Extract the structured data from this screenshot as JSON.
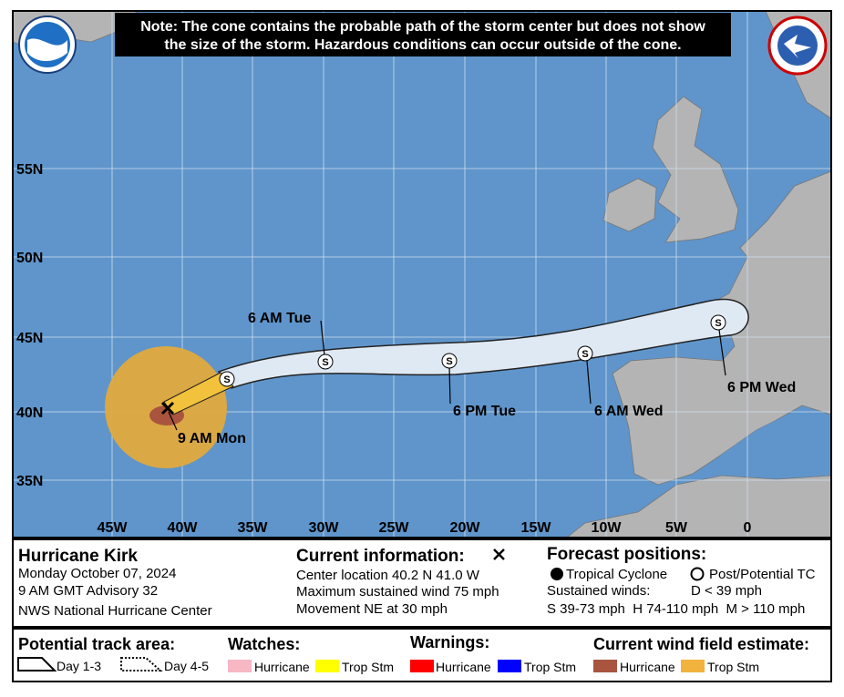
{
  "note": [
    "Note: The cone contains the probable path of the storm center but does not show",
    "the size of the storm. Hazardous conditions can occur outside of the cone."
  ],
  "map": {
    "latitudes": [
      "55N",
      "50N",
      "45N",
      "40N",
      "35N"
    ],
    "longitudes": [
      "45W",
      "40W",
      "35W",
      "30W",
      "25W",
      "20W",
      "15W",
      "10W",
      "5W",
      "0"
    ],
    "track_labels": [
      "6 AM Tue",
      "6 PM Tue",
      "6 AM Wed",
      "6 PM Wed",
      "9 AM Mon"
    ],
    "marker_letter": "S"
  },
  "storm": {
    "name": "Hurricane Kirk",
    "date": "Monday October 07, 2024",
    "advisory": "9 AM GMT Advisory 32",
    "center": "NWS National Hurricane Center"
  },
  "current": {
    "title": "Current information:",
    "lines": [
      "Center location 40.2 N 41.0 W",
      "Maximum sustained wind 75 mph",
      "Movement NE at 30 mph"
    ]
  },
  "forecast": {
    "title": "Forecast positions:",
    "tropical": "Tropical Cyclone",
    "post": "Post/Potential TC",
    "sustained": "Sustained winds:",
    "depression": "D < 39 mph",
    "scale": "S 39-73 mph  H 74-110 mph  M > 110 mph"
  },
  "legend": {
    "track_title": "Potential track area:",
    "day13": "Day 1-3",
    "day45": "Day 4-5",
    "watches": "Watches:",
    "watch_items": [
      "Hurricane",
      "Trop Stm"
    ],
    "warnings": "Warnings:",
    "warning_items": [
      "Hurricane",
      "Trop Stm"
    ],
    "wind": "Current wind field estimate:",
    "wind_items": [
      "Hurricane",
      "Trop Stm"
    ]
  }
}
